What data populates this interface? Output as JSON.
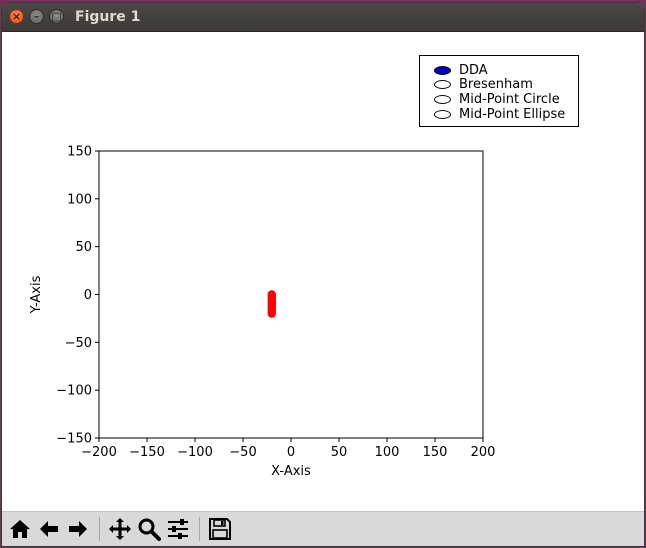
{
  "window": {
    "title": "Figure 1",
    "close_glyph": "×",
    "minimize_glyph": "–",
    "maximize_glyph": "□"
  },
  "legend": {
    "items": [
      {
        "label": "DDA",
        "selected": true
      },
      {
        "label": "Bresenham",
        "selected": false
      },
      {
        "label": "Mid-Point Circle",
        "selected": false
      },
      {
        "label": "Mid-Point Ellipse",
        "selected": false
      }
    ]
  },
  "toolbar": {
    "buttons": [
      {
        "name": "home-button",
        "icon": "home-icon"
      },
      {
        "name": "back-button",
        "icon": "arrow-left-icon"
      },
      {
        "name": "forward-button",
        "icon": "arrow-right-icon"
      },
      {
        "name": "pan-button",
        "icon": "move-icon"
      },
      {
        "name": "zoom-button",
        "icon": "magnifier-icon"
      },
      {
        "name": "configure-subplots-button",
        "icon": "sliders-icon"
      },
      {
        "name": "save-button",
        "icon": "floppy-icon"
      }
    ]
  },
  "chart_data": {
    "type": "scatter",
    "xlabel": "X-Axis",
    "ylabel": "Y-Axis",
    "xlim": [
      -200,
      200
    ],
    "ylim": [
      -150,
      150
    ],
    "xticks": [
      -200,
      -150,
      -100,
      -50,
      0,
      50,
      100,
      150,
      200
    ],
    "yticks": [
      -150,
      -100,
      -50,
      0,
      50,
      100,
      150
    ],
    "xtick_labels": [
      "−200",
      "−150",
      "−100",
      "−50",
      "0",
      "50",
      "100",
      "150",
      "200"
    ],
    "ytick_labels": [
      "−150",
      "−100",
      "−50",
      "0",
      "50",
      "100",
      "150"
    ],
    "grid": false,
    "series": [
      {
        "color": "#ff0000",
        "points": [
          [
            -20,
            0
          ],
          [
            -20,
            -2
          ],
          [
            -20,
            -4
          ],
          [
            -20,
            -6
          ],
          [
            -20,
            -8
          ],
          [
            -20,
            -10
          ],
          [
            -20,
            -12
          ],
          [
            -20,
            -14
          ],
          [
            -20,
            -16
          ],
          [
            -20,
            -18
          ],
          [
            -20,
            -20
          ]
        ]
      }
    ]
  }
}
